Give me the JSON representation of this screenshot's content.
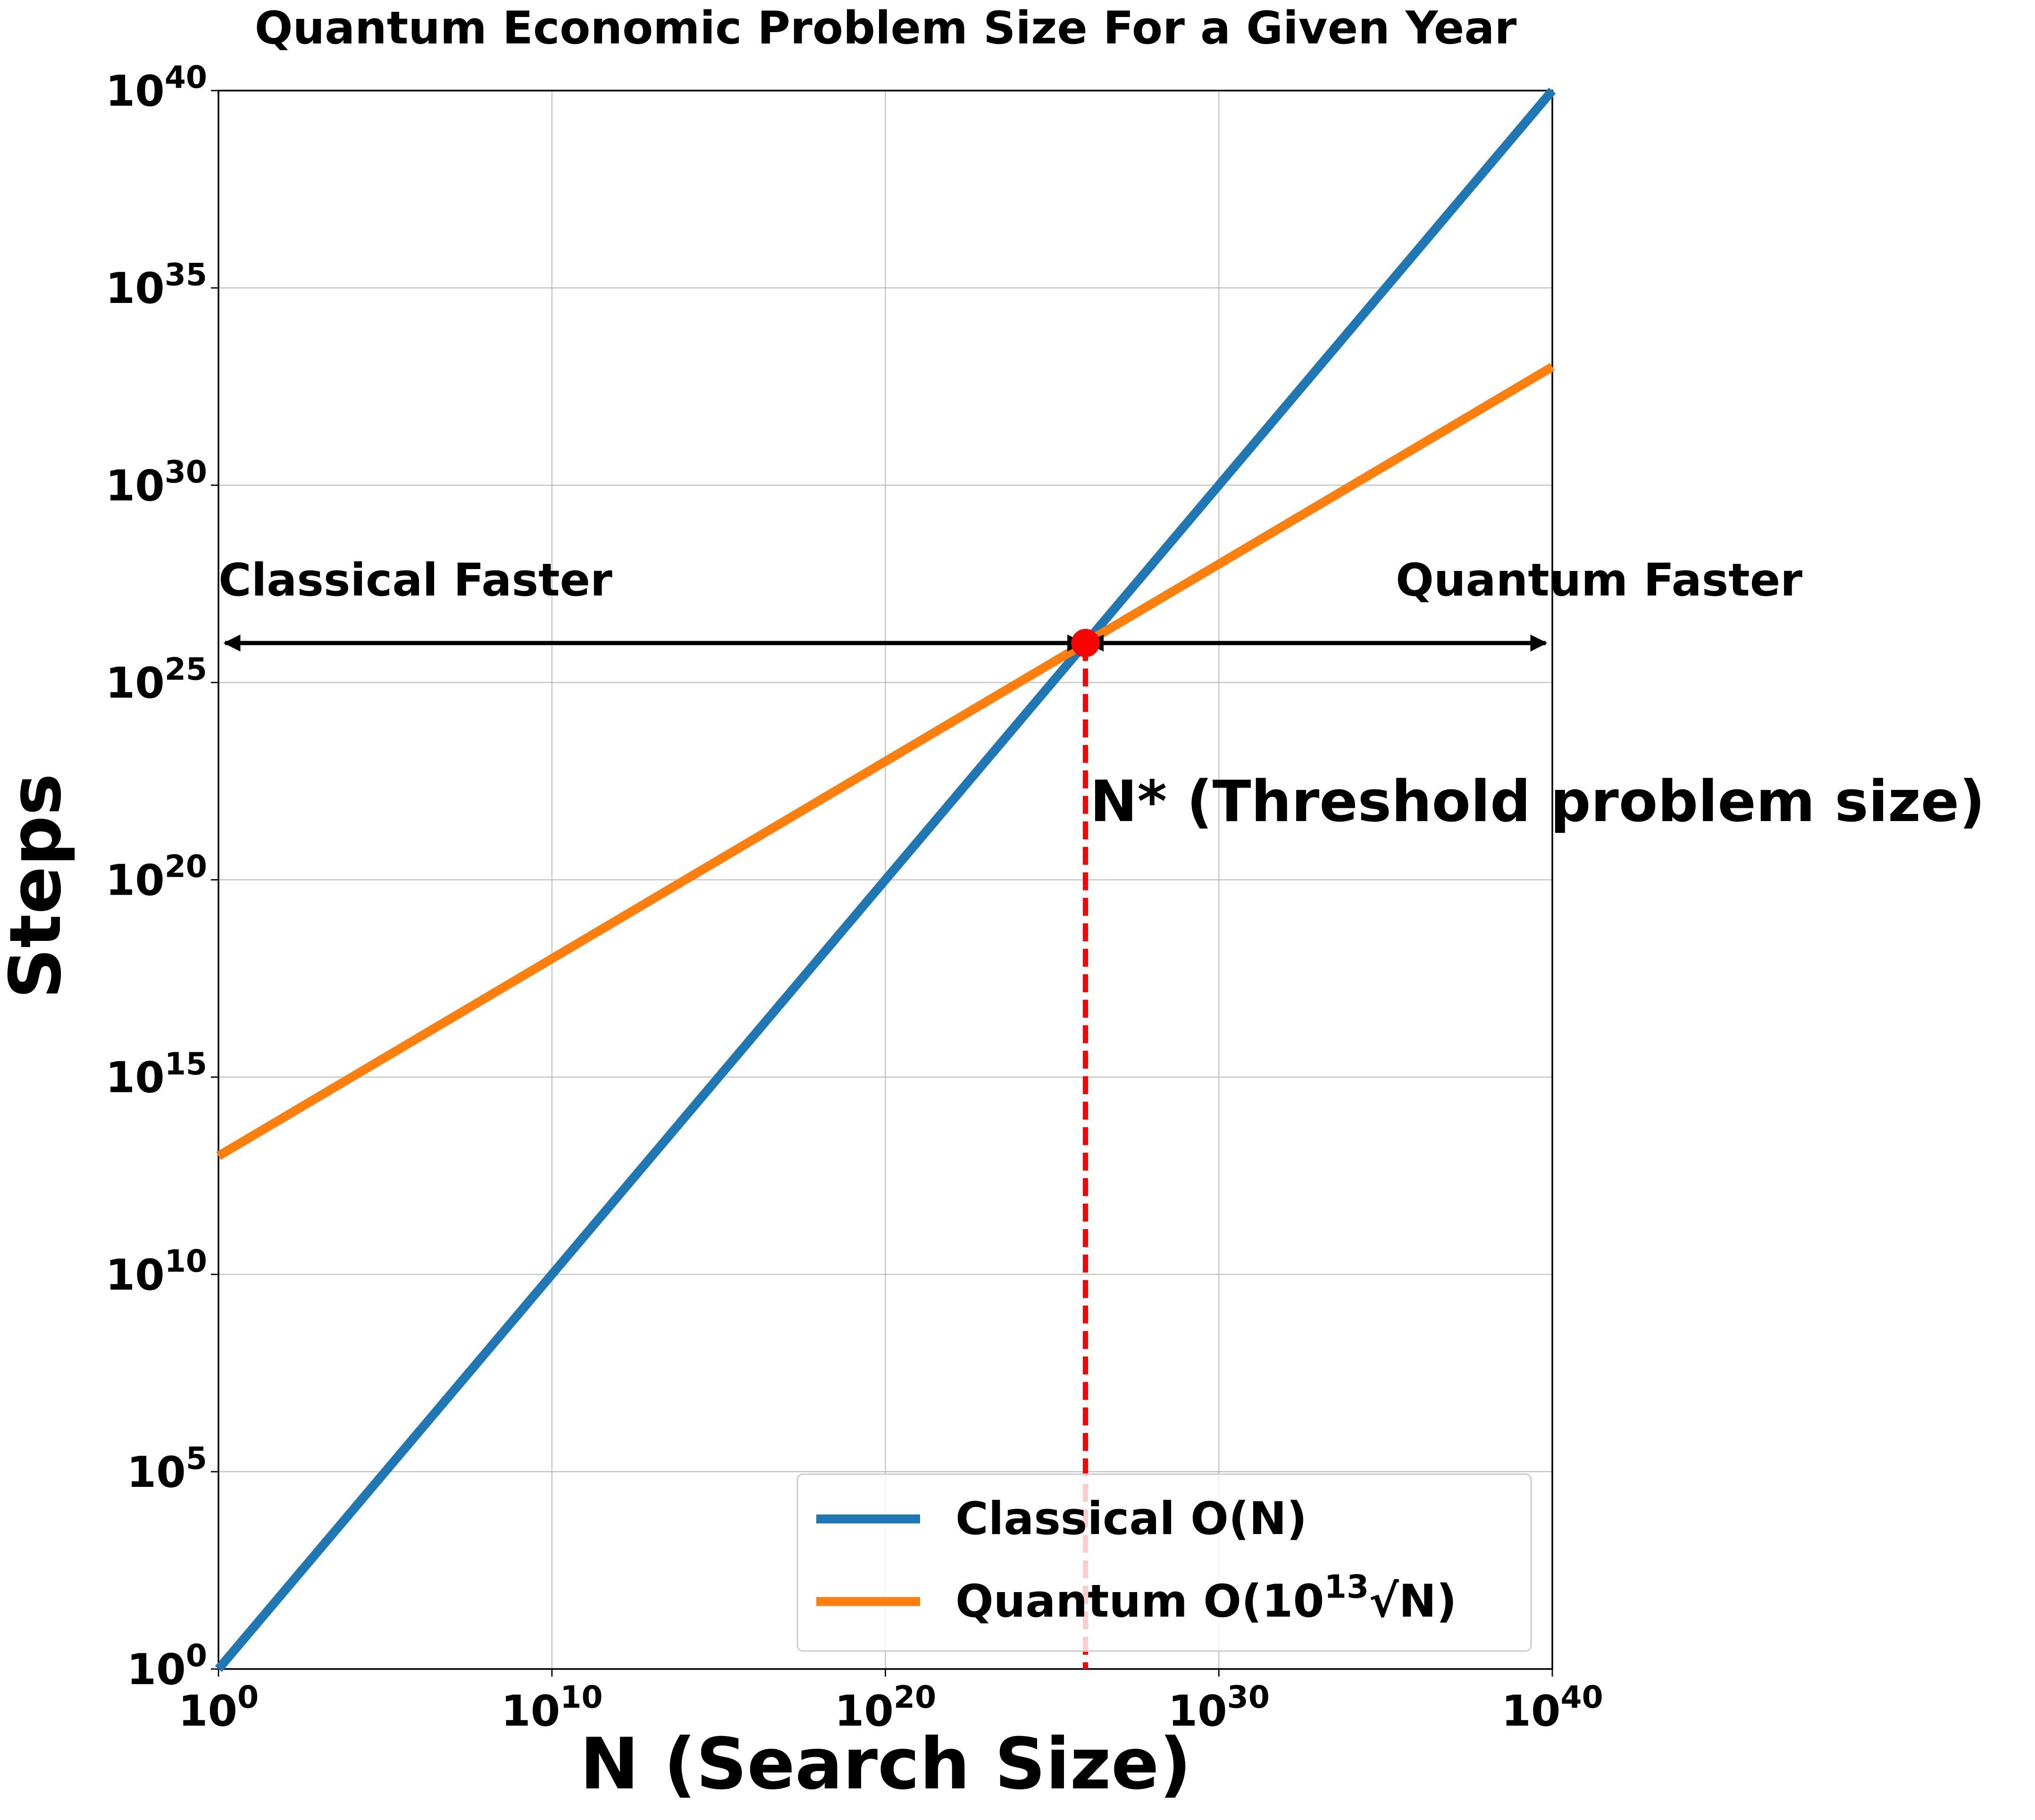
{
  "chart_data": {
    "type": "line",
    "title": "Quantum Economic Problem Size For a Given Year",
    "xlabel": "N (Search Size)",
    "ylabel": "Steps",
    "x_scale": "log",
    "y_scale": "log",
    "xlim_exp": [
      0,
      40
    ],
    "ylim_exp": [
      0,
      40
    ],
    "grid": true,
    "x_ticks": [
      {
        "exp": 0,
        "base": "10",
        "sup": "0"
      },
      {
        "exp": 10,
        "base": "10",
        "sup": "10"
      },
      {
        "exp": 20,
        "base": "10",
        "sup": "20"
      },
      {
        "exp": 30,
        "base": "10",
        "sup": "30"
      },
      {
        "exp": 40,
        "base": "10",
        "sup": "40"
      }
    ],
    "y_ticks": [
      {
        "exp": 0,
        "base": "10",
        "sup": "0"
      },
      {
        "exp": 5,
        "base": "10",
        "sup": "5"
      },
      {
        "exp": 10,
        "base": "10",
        "sup": "10"
      },
      {
        "exp": 15,
        "base": "10",
        "sup": "15"
      },
      {
        "exp": 20,
        "base": "10",
        "sup": "20"
      },
      {
        "exp": 25,
        "base": "10",
        "sup": "25"
      },
      {
        "exp": 30,
        "base": "10",
        "sup": "30"
      },
      {
        "exp": 35,
        "base": "10",
        "sup": "35"
      },
      {
        "exp": 40,
        "base": "10",
        "sup": "40"
      }
    ],
    "series": [
      {
        "name": "Classical O(N)",
        "color": "#1f77b4",
        "x_exp": [
          0,
          40
        ],
        "y_exp": [
          0,
          40
        ]
      },
      {
        "name": "Quantum O(10^13 √N)",
        "color": "#ff7f0e",
        "x_exp": [
          0,
          40
        ],
        "y_exp": [
          13,
          33
        ]
      }
    ],
    "legend": {
      "placement": "lower right",
      "entries": [
        {
          "prefix": "Classical O(N)",
          "sup": "",
          "suffix": ""
        },
        {
          "prefix": "Quantum O(10",
          "sup": "13",
          "suffix": "√N)"
        }
      ]
    },
    "annotations": {
      "threshold": {
        "x_exp": 26,
        "y_exp": 26,
        "label": "N* (Threshold problem size)",
        "line_color": "#ff0000",
        "marker_color": "#ff0000"
      },
      "classical_faster": {
        "label": "Classical Faster",
        "arrow_from_exp": 0.2,
        "arrow_to_exp": 26
      },
      "quantum_faster": {
        "label": "Quantum Faster",
        "arrow_from_exp": 26,
        "arrow_to_exp": 39.8
      }
    }
  }
}
